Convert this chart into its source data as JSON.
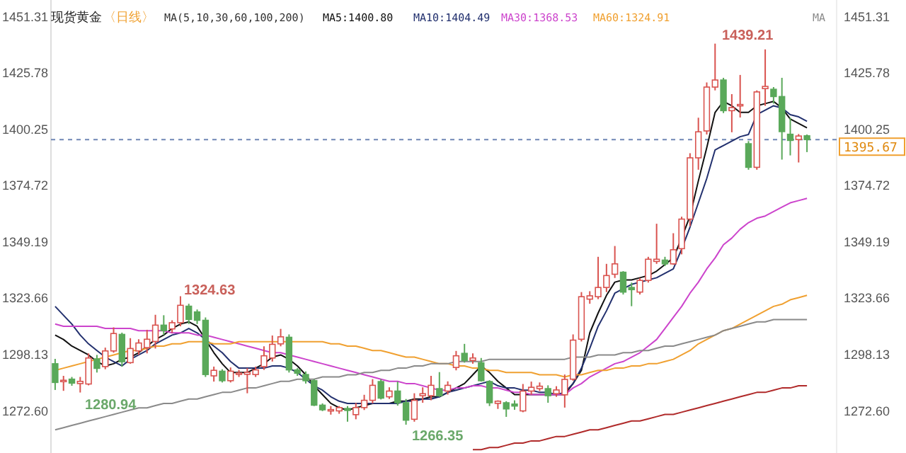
{
  "chart_data": {
    "type": "candlestick",
    "title": "现货黄金",
    "subtitle": "〈日线〉",
    "legend_title": "MA(5,10,30,60,100,200)",
    "legend": "top",
    "categories": [
      null,
      null,
      null,
      null,
      null,
      null,
      null,
      null,
      null,
      null,
      null,
      null,
      null,
      null,
      null,
      null,
      null,
      null,
      null,
      null,
      null,
      null,
      null,
      null,
      null,
      null,
      null,
      null,
      null,
      null,
      null,
      null,
      null,
      null,
      null,
      null,
      null,
      null,
      null,
      null,
      null,
      null,
      null,
      null,
      null,
      null,
      null,
      null,
      null,
      null,
      null,
      null,
      null,
      null,
      null,
      null,
      null,
      null,
      null,
      null,
      null,
      null,
      null,
      null,
      null,
      null,
      null,
      null,
      null,
      null,
      null,
      null,
      null,
      null,
      null,
      null,
      null,
      null,
      null,
      null,
      null,
      null,
      null,
      null,
      null,
      null,
      null,
      null,
      null,
      null,
      null
    ],
    "ohlc": [
      [
        1294.0,
        1296.2,
        1282.1,
        1285.5
      ],
      [
        1286.0,
        1288.5,
        1281.7,
        1286.5
      ],
      [
        1287.0,
        1288.0,
        1284.0,
        1285.2
      ],
      [
        1285.0,
        1288.0,
        1280.94,
        1286.0
      ],
      [
        1284.8,
        1298.7,
        1284.2,
        1296.6
      ],
      [
        1296.2,
        1298.0,
        1290.0,
        1291.9
      ],
      [
        1292.7,
        1301.3,
        1291.5,
        1299.8
      ],
      [
        1299.8,
        1310.5,
        1299.0,
        1307.7
      ],
      [
        1307.3,
        1308.1,
        1292.7,
        1294.9
      ],
      [
        1294.5,
        1305.6,
        1294.0,
        1300.9
      ],
      [
        1299.8,
        1305.1,
        1298.0,
        1303.4
      ],
      [
        1301.3,
        1309.4,
        1298.7,
        1305.1
      ],
      [
        1304.1,
        1316.2,
        1300.9,
        1311.5
      ],
      [
        1311.5,
        1316.0,
        1307.0,
        1309.0
      ],
      [
        1309.8,
        1313.7,
        1308.0,
        1312.6
      ],
      [
        1312.6,
        1324.63,
        1311.0,
        1320.5
      ],
      [
        1320.1,
        1321.2,
        1312.0,
        1314.1
      ],
      [
        1317.5,
        1318.6,
        1312.0,
        1313.7
      ],
      [
        1313.7,
        1315.0,
        1288.0,
        1289.1
      ],
      [
        1288.5,
        1292.7,
        1285.9,
        1291.0
      ],
      [
        1290.6,
        1291.5,
        1285.5,
        1286.3
      ],
      [
        1286.3,
        1292.3,
        1285.5,
        1290.6
      ],
      [
        1289.5,
        1291.2,
        1288.0,
        1289.8
      ],
      [
        1289.2,
        1292.0,
        1280.6,
        1290.1
      ],
      [
        1289.1,
        1292.7,
        1288.0,
        1291.2
      ],
      [
        1292.7,
        1301.9,
        1291.2,
        1297.6
      ],
      [
        1296.6,
        1306.8,
        1295.0,
        1302.8
      ],
      [
        1303.0,
        1309.8,
        1301.9,
        1306.2
      ],
      [
        1306.0,
        1307.3,
        1290.0,
        1291.2
      ],
      [
        1291.2,
        1292.0,
        1288.5,
        1289.7
      ],
      [
        1289.1,
        1290.5,
        1285.0,
        1286.3
      ],
      [
        1286.3,
        1287.0,
        1274.8,
        1275.2
      ],
      [
        1275.2,
        1276.0,
        1272.5,
        1273.1
      ],
      [
        1272.8,
        1274.8,
        1270.9,
        1273.2
      ],
      [
        1272.6,
        1274.8,
        1271.3,
        1274.1
      ],
      [
        1273.7,
        1274.8,
        1267.7,
        1272.8
      ],
      [
        1270.9,
        1276.2,
        1268.8,
        1274.1
      ],
      [
        1274.1,
        1279.9,
        1273.0,
        1277.4
      ],
      [
        1277.4,
        1287.0,
        1276.0,
        1284.2
      ],
      [
        1285.9,
        1287.0,
        1277.8,
        1278.4
      ],
      [
        1279.0,
        1283.3,
        1278.0,
        1281.6
      ],
      [
        1281.6,
        1285.9,
        1275.0,
        1276.3
      ],
      [
        1276.3,
        1278.0,
        1266.35,
        1268.4
      ],
      [
        1268.8,
        1280.6,
        1267.7,
        1277.4
      ],
      [
        1279.5,
        1283.3,
        1276.3,
        1280.4
      ],
      [
        1279.5,
        1288.5,
        1277.4,
        1284.2
      ],
      [
        1282.7,
        1290.2,
        1279.0,
        1279.5
      ],
      [
        1281.6,
        1286.0,
        1280.0,
        1284.2
      ],
      [
        1292.3,
        1299.8,
        1291.0,
        1297.6
      ],
      [
        1298.7,
        1303.0,
        1294.5,
        1295.5
      ],
      [
        1295.5,
        1298.7,
        1294.0,
        1296.6
      ],
      [
        1294.4,
        1296.6,
        1285.9,
        1286.3
      ],
      [
        1285.9,
        1286.5,
        1274.8,
        1276.3
      ],
      [
        1276.0,
        1277.4,
        1273.5,
        1277.0
      ],
      [
        1276.3,
        1277.0,
        1269.9,
        1273.5
      ],
      [
        1275.7,
        1277.4,
        1273.1,
        1274.8
      ],
      [
        1272.6,
        1284.8,
        1272.0,
        1281.6
      ],
      [
        1281.6,
        1285.9,
        1279.9,
        1283.3
      ],
      [
        1282.7,
        1285.5,
        1281.6,
        1283.8
      ],
      [
        1282.7,
        1284.2,
        1276.3,
        1279.5
      ],
      [
        1280.4,
        1283.8,
        1279.0,
        1282.1
      ],
      [
        1279.9,
        1289.1,
        1274.1,
        1286.9
      ],
      [
        1287.0,
        1307.3,
        1286.3,
        1304.7
      ],
      [
        1305.1,
        1326.5,
        1304.1,
        1324.4
      ],
      [
        1323.3,
        1326.9,
        1321.2,
        1324.8
      ],
      [
        1324.4,
        1342.5,
        1323.3,
        1328.6
      ],
      [
        1328.6,
        1339.3,
        1326.5,
        1334.0
      ],
      [
        1334.6,
        1347.4,
        1332.9,
        1339.3
      ],
      [
        1335.5,
        1336.0,
        1325.4,
        1326.5
      ],
      [
        1328.6,
        1330.8,
        1320.1,
        1327.6
      ],
      [
        1326.5,
        1332.9,
        1325.4,
        1331.8
      ],
      [
        1331.8,
        1342.5,
        1330.8,
        1341.4
      ],
      [
        1340.4,
        1357.5,
        1339.3,
        1341.4
      ],
      [
        1341.0,
        1342.5,
        1338.3,
        1339.3
      ],
      [
        1339.3,
        1353.2,
        1338.9,
        1345.7
      ],
      [
        1346.2,
        1360.7,
        1343.6,
        1359.6
      ],
      [
        1359.6,
        1389.5,
        1356.4,
        1387.4
      ],
      [
        1387.4,
        1405.6,
        1382.0,
        1399.2
      ],
      [
        1399.6,
        1421.6,
        1398.0,
        1419.5
      ],
      [
        1419.5,
        1439.21,
        1418.0,
        1422.7
      ],
      [
        1422.7,
        1423.7,
        1407.7,
        1408.8
      ],
      [
        1408.8,
        1416.3,
        1399.0,
        1410.2
      ],
      [
        1411.0,
        1425.0,
        1405.7,
        1411.6
      ],
      [
        1393.8,
        1395.0,
        1382.0,
        1383.1
      ],
      [
        1383.1,
        1418.0,
        1382.0,
        1417.3
      ],
      [
        1418.8,
        1436.6,
        1411.0,
        1419.8
      ],
      [
        1418.5,
        1419.5,
        1412.0,
        1415.2
      ],
      [
        1415.2,
        1423.7,
        1386.6,
        1399.3
      ],
      [
        1398.1,
        1405.6,
        1388.5,
        1395.3
      ],
      [
        1395.7,
        1398.2,
        1385.3,
        1397.3
      ],
      [
        1397.4,
        1398.0,
        1390.0,
        1395.67
      ]
    ],
    "series": [
      {
        "name": "MA5:1400.80",
        "type": "line",
        "color": "#111111",
        "values": [
          1307,
          1305,
          1302,
          1300,
          1298,
          1295,
          1293,
          1294,
          1296,
          1297,
          1299,
          1302,
          1305,
          1307,
          1310,
          1312,
          1313,
          1311,
          1305,
          1299,
          1294,
          1290,
          1290,
          1290,
          1292,
          1294,
          1297,
          1298,
          1296,
          1293,
          1289,
          1284,
          1280,
          1276,
          1274,
          1273,
          1274,
          1275,
          1276,
          1276,
          1276,
          1277,
          1277,
          1278,
          1278,
          1279,
          1279,
          1281,
          1283,
          1285,
          1289,
          1293,
          1290,
          1286,
          1283,
          1280,
          1280,
          1280,
          1280,
          1280,
          1280,
          1280,
          1285,
          1291,
          1308,
          1317,
          1325,
          1331,
          1332,
          1332,
          1333,
          1334,
          1336,
          1339,
          1342,
          1351,
          1361,
          1377,
          1392,
          1408,
          1413,
          1411,
          1408,
          1408,
          1411,
          1412,
          1413,
          1410,
          1405,
          1403,
          1401
        ]
      },
      {
        "name": "MA10:1404.49",
        "type": "line",
        "color": "#22306e",
        "values": [
          1320,
          1316,
          1312,
          1307,
          1303,
          1300,
          1297,
          1295,
          1293,
          1296,
          1298,
          1300,
          1303,
          1305,
          1307,
          1308,
          1310,
          1308,
          1305,
          1302,
          1299,
          1295,
          1292,
          1292,
          1292,
          1292,
          1293,
          1293,
          1292,
          1290,
          1287,
          1284,
          1282,
          1279,
          1277,
          1276,
          1276,
          1276,
          1276,
          1276,
          1276,
          1276,
          1277,
          1277,
          1278,
          1278,
          1279,
          1281,
          1282,
          1283,
          1284,
          1285,
          1286,
          1284,
          1283,
          1283,
          1282,
          1282,
          1281,
          1281,
          1280,
          1281,
          1285,
          1292,
          1301,
          1311,
          1318,
          1326,
          1328,
          1330,
          1331,
          1332,
          1333,
          1335,
          1337,
          1346,
          1356,
          1367,
          1378,
          1391,
          1393,
          1395,
          1397,
          1398,
          1407,
          1409,
          1411,
          1410,
          1407,
          1406,
          1404
        ]
      },
      {
        "name": "MA30:1368.53",
        "type": "line",
        "color": "#cc44cc",
        "values": [
          1312,
          1311,
          1311,
          1311,
          1311,
          1311,
          1310,
          1310,
          1310,
          1310,
          1309,
          1309,
          1309,
          1309,
          1308,
          1308,
          1308,
          1307,
          1307,
          1306,
          1305,
          1304,
          1303,
          1302,
          1301,
          1300,
          1299,
          1299,
          1298,
          1297,
          1296,
          1295,
          1294,
          1293,
          1292,
          1291,
          1290,
          1289,
          1288,
          1287,
          1286,
          1286,
          1285,
          1285,
          1284,
          1283,
          1282,
          1282,
          1283,
          1283,
          1284,
          1284,
          1283,
          1283,
          1282,
          1281,
          1281,
          1280,
          1280,
          1280,
          1280,
          1280,
          1283,
          1285,
          1288,
          1290,
          1292,
          1294,
          1295,
          1297,
          1299,
          1302,
          1305,
          1310,
          1315,
          1320,
          1326,
          1331,
          1337,
          1342,
          1348,
          1351,
          1355,
          1358,
          1360,
          1361,
          1363,
          1365,
          1367,
          1368,
          1369
        ]
      },
      {
        "name": "MA60:1324.91",
        "type": "line",
        "color": "#f0a030",
        "values": [
          1291,
          1292,
          1293,
          1294,
          1295,
          1296,
          1297,
          1298,
          1299,
          1300,
          1300,
          1301,
          1302,
          1302,
          1303,
          1303,
          1304,
          1304,
          1304,
          1303,
          1303,
          1303,
          1304,
          1304,
          1304,
          1304,
          1304,
          1304,
          1304,
          1304,
          1304,
          1304,
          1304,
          1303,
          1303,
          1302,
          1302,
          1301,
          1300,
          1300,
          1299,
          1298,
          1297,
          1297,
          1296,
          1295,
          1294,
          1294,
          1293,
          1293,
          1292,
          1292,
          1291,
          1291,
          1290,
          1290,
          1290,
          1290,
          1289,
          1289,
          1289,
          1288,
          1289,
          1289,
          1290,
          1291,
          1291,
          1292,
          1292,
          1293,
          1293,
          1294,
          1294,
          1295,
          1296,
          1298,
          1300,
          1303,
          1305,
          1307,
          1309,
          1310,
          1312,
          1314,
          1316,
          1318,
          1320,
          1321,
          1323,
          1324,
          1325
        ]
      },
      {
        "name": "MA",
        "type": "line",
        "color": "#8a8a8a",
        "values": [
          1264,
          1265,
          1266,
          1267,
          1268,
          1269,
          1270,
          1271,
          1272,
          1273,
          1274,
          1274,
          1275,
          1276,
          1276,
          1277,
          1278,
          1278,
          1279,
          1280,
          1281,
          1281,
          1282,
          1283,
          1283,
          1284,
          1285,
          1286,
          1286,
          1287,
          1287,
          1287,
          1288,
          1288,
          1288,
          1289,
          1289,
          1290,
          1290,
          1291,
          1291,
          1292,
          1292,
          1293,
          1293,
          1294,
          1294,
          1294,
          1295,
          1295,
          1295,
          1295,
          1296,
          1296,
          1296,
          1296,
          1296,
          1296,
          1296,
          1296,
          1296,
          1296,
          1297,
          1297,
          1297,
          1298,
          1298,
          1298,
          1299,
          1299,
          1300,
          1300,
          1301,
          1302,
          1302,
          1303,
          1304,
          1305,
          1306,
          1307,
          1309,
          1310,
          1311,
          1312,
          1313,
          1313,
          1314,
          1314,
          1314,
          1314,
          1314
        ]
      },
      {
        "type": "line",
        "color": "#b02a2a",
        "values": [
          null,
          null,
          null,
          null,
          null,
          null,
          null,
          null,
          null,
          null,
          null,
          null,
          null,
          null,
          null,
          null,
          null,
          null,
          null,
          null,
          null,
          null,
          null,
          null,
          null,
          null,
          null,
          null,
          null,
          null,
          null,
          null,
          null,
          null,
          null,
          null,
          null,
          null,
          null,
          null,
          null,
          null,
          null,
          null,
          null,
          null,
          null,
          null,
          null,
          null,
          1255,
          1255,
          1256,
          1256,
          1257,
          1258,
          1258,
          1259,
          1259,
          1260,
          1261,
          1261,
          1262,
          1263,
          1264,
          1264,
          1265,
          1266,
          1267,
          1268,
          1268,
          1269,
          1270,
          1271,
          1271,
          1272,
          1273,
          1274,
          1275,
          1276,
          1277,
          1278,
          1279,
          1280,
          1281,
          1281,
          1282,
          1283,
          1283,
          1284,
          1284
        ]
      }
    ],
    "ylim": [
      1253.5,
      1459
    ],
    "yticks": [
      {
        "value": 1272.6,
        "label": "1272.60"
      },
      1298.13,
      1323.66,
      1349.19,
      1374.72,
      1400.25,
      1425.78,
      1451.31
    ],
    "y2lim": [
      1253.5,
      1459
    ],
    "y2ticks": [
      {
        "value": 1272.6,
        "label": "1272.60"
      },
      1298.13,
      1323.66,
      1349.19,
      1374.72,
      1400.25,
      1425.78,
      1451.31
    ],
    "ref_lines": [
      {
        "axis": "y",
        "value": 1395.67,
        "label": "1395.67",
        "color": "#6f86b5",
        "line_style": "dashed"
      }
    ],
    "annotations": [
      "1439.21",
      "1324.63",
      "1280.94",
      "1266.35"
    ]
  }
}
